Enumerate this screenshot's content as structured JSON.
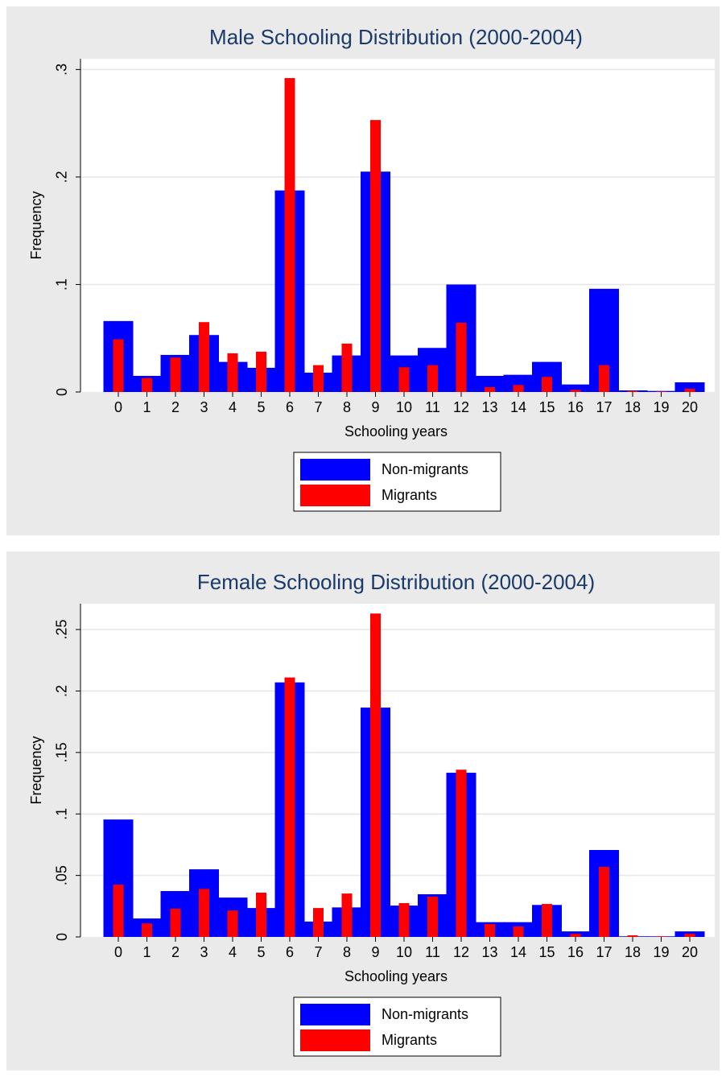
{
  "chart_data": [
    {
      "type": "bar",
      "title": "Male Schooling Distribution (2000-2004)",
      "x_label": "Schooling years",
      "y_label": "Frequency",
      "categories": [
        "0",
        "1",
        "2",
        "3",
        "4",
        "5",
        "6",
        "7",
        "8",
        "9",
        "10",
        "11",
        "12",
        "13",
        "14",
        "15",
        "16",
        "17",
        "18",
        "19",
        "20"
      ],
      "series": [
        {
          "name": "Non-migrants",
          "color": "#0000ff",
          "values": [
            0.066,
            0.015,
            0.0345,
            0.053,
            0.028,
            0.0225,
            0.1875,
            0.018,
            0.034,
            0.205,
            0.034,
            0.041,
            0.1,
            0.015,
            0.016,
            0.028,
            0.007,
            0.096,
            0.0015,
            0.001,
            0.009
          ]
        },
        {
          "name": "Migrants",
          "color": "#ff0000",
          "values": [
            0.049,
            0.013,
            0.032,
            0.065,
            0.036,
            0.0375,
            0.292,
            0.025,
            0.045,
            0.253,
            0.023,
            0.025,
            0.0645,
            0.0045,
            0.0065,
            0.014,
            0.002,
            0.025,
            0.001,
            0.0005,
            0.003
          ]
        }
      ],
      "ylim": [
        0,
        0.31
      ],
      "yticks": [
        0,
        {
          "value": 0.1,
          "label": ".1"
        },
        {
          "value": 0.2,
          "label": ".2"
        },
        {
          "value": 0.3,
          "label": ".3"
        }
      ],
      "grid": true,
      "legend": "bottom"
    },
    {
      "type": "bar",
      "title": "Female Schooling Distribution (2000-2004)",
      "x_label": "Schooling years",
      "y_label": "Frequency",
      "categories": [
        "0",
        "1",
        "2",
        "3",
        "4",
        "5",
        "6",
        "7",
        "8",
        "9",
        "10",
        "11",
        "12",
        "13",
        "14",
        "15",
        "16",
        "17",
        "18",
        "19",
        "20"
      ],
      "series": [
        {
          "name": "Non-migrants",
          "color": "#0000ff",
          "values": [
            0.0955,
            0.015,
            0.0373,
            0.055,
            0.032,
            0.0235,
            0.207,
            0.0125,
            0.024,
            0.1865,
            0.0255,
            0.0347,
            0.1335,
            0.012,
            0.012,
            0.026,
            0.0045,
            0.0707,
            0.0005,
            0.0005,
            0.0045
          ]
        },
        {
          "name": "Migrants",
          "color": "#ff0000",
          "values": [
            0.0425,
            0.011,
            0.023,
            0.039,
            0.0215,
            0.036,
            0.211,
            0.0235,
            0.0353,
            0.263,
            0.0275,
            0.0327,
            0.136,
            0.0105,
            0.0085,
            0.0268,
            0.0025,
            0.057,
            0.0013,
            0.0005,
            0.0025
          ]
        }
      ],
      "ylim": [
        0,
        0.271
      ],
      "yticks": [
        0,
        {
          "value": 0.05,
          "label": ".05"
        },
        {
          "value": 0.1,
          "label": ".1"
        },
        {
          "value": 0.15,
          "label": ".15"
        },
        {
          "value": 0.2,
          "label": ".2"
        },
        {
          "value": 0.25,
          "label": ".25"
        }
      ],
      "grid": true,
      "legend": "bottom"
    }
  ]
}
